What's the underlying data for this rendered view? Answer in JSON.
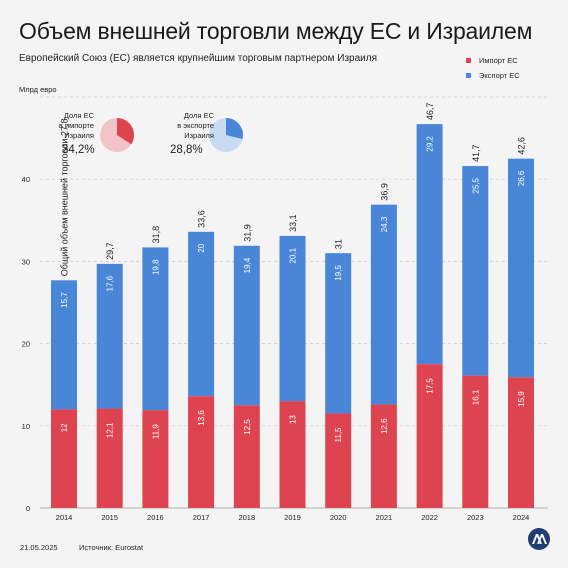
{
  "title": "Объем внешней торговли между ЕС и Израилем",
  "subtitle": "Европейский Союз (ЕС) является крупнейшим торговым партнером Израиля",
  "unit": "Млрд евро",
  "legend": [
    {
      "label": "Импорт ЕС",
      "color": "#de4450"
    },
    {
      "label": "Экспорт ЕС",
      "color": "#4a86d8"
    }
  ],
  "share_cards": [
    {
      "label_lines": [
        "Доля ЕС",
        "в импорте",
        "Израиля"
      ],
      "value": "34,2%",
      "fraction": 0.342,
      "color": "#de4450",
      "bg": "#f2c4c7"
    },
    {
      "label_lines": [
        "Доля ЕС",
        "в экспорте",
        "Израиля"
      ],
      "value": "28,8%",
      "fraction": 0.288,
      "color": "#4a86d8",
      "bg": "#c9daf3"
    }
  ],
  "total_note": "Общий объем внешней торговли",
  "footer": {
    "date": "21.05.2025",
    "source": "Источник: Eurostat"
  },
  "logo_icon": "aa-logo-icon",
  "chart_data": {
    "type": "bar",
    "stacked": true,
    "categories": [
      "2014",
      "2015",
      "2016",
      "2017",
      "2018",
      "2019",
      "2020",
      "2021",
      "2022",
      "2023",
      "2024"
    ],
    "series": [
      {
        "name": "Импорт ЕС",
        "color": "#de4450",
        "values": [
          12,
          12.1,
          11.9,
          13.6,
          12.5,
          13,
          11.5,
          12.6,
          17.5,
          16.1,
          15.9
        ],
        "labels": [
          "12",
          "12,1",
          "11,9",
          "13,6",
          "12,5",
          "13",
          "11,5",
          "12,6",
          "17,5",
          "16,1",
          "15,9"
        ]
      },
      {
        "name": "Экспорт ЕС",
        "color": "#4a86d8",
        "values": [
          15.7,
          17.6,
          19.8,
          20,
          19.4,
          20.1,
          19.5,
          24.3,
          29.2,
          25.5,
          26.6
        ],
        "labels": [
          "15,7",
          "17,6",
          "19,8",
          "20",
          "19,4",
          "20,1",
          "19,5",
          "24,3",
          "29,2",
          "25,5",
          "26,6"
        ]
      }
    ],
    "totals": [
      27.8,
      29.7,
      31.8,
      33.6,
      31.9,
      33.1,
      31,
      36.9,
      46.7,
      41.7,
      42.6
    ],
    "total_labels": [
      "27,8",
      "29,7",
      "31,8",
      "33,6",
      "31,9",
      "33,1",
      "31",
      "36,9",
      "46,7",
      "41,7",
      "42,6"
    ],
    "yticks": [
      "0",
      "10",
      "20",
      "30",
      "40"
    ],
    "ylim": [
      0,
      50
    ]
  }
}
